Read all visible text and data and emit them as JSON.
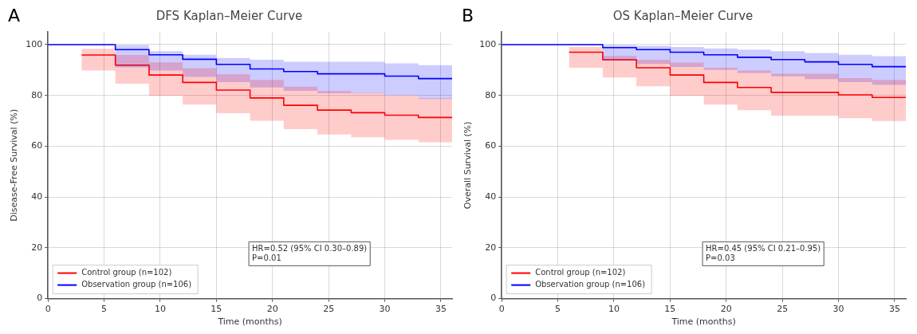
{
  "chart_data": [
    {
      "type": "step",
      "title": "DFS Kaplan–Meier Curve",
      "xlabel": "Time (months)",
      "ylabel": "Disease-Free Survival (%)",
      "xlim": [
        0,
        36
      ],
      "xticks": [
        0,
        5,
        10,
        15,
        20,
        25,
        30,
        35
      ],
      "ylim": [
        0,
        105
      ],
      "yticks": [
        0,
        20,
        40,
        60,
        80,
        100
      ],
      "grid": true,
      "legend": "bottom left",
      "annotations": [
        "A",
        "HR=0.52 (95% CI 0.30–0.89)",
        "P=0.01"
      ],
      "series": [
        {
          "name": "Control group (n=102)",
          "color": "#ff0000",
          "x": [
            0,
            3,
            6,
            9,
            12,
            15,
            18,
            21,
            24,
            27,
            30,
            33,
            36
          ],
          "values": [
            null,
            95.9,
            91.9,
            88.0,
            85.1,
            82.1,
            79.0,
            76.1,
            74.2,
            73.2,
            72.2,
            71.3,
            71.3
          ],
          "lower": [
            100,
            89.8,
            84.6,
            79.8,
            76.4,
            73.0,
            70.0,
            66.7,
            64.6,
            63.5,
            62.5,
            61.5,
            61.5
          ],
          "upper": [
            100,
            98.3,
            95.9,
            93.0,
            90.7,
            88.3,
            86.1,
            83.4,
            81.7,
            81.0,
            80.0,
            78.9,
            78.9
          ]
        },
        {
          "name": "Observation group (n=106)",
          "color": "#0000ff",
          "x": [
            0,
            6,
            9,
            12,
            15,
            18,
            21,
            24,
            30,
            33,
            36
          ],
          "values": [
            100,
            98.0,
            96.0,
            94.2,
            92.2,
            90.4,
            89.4,
            88.5,
            87.6,
            86.6,
            86.6
          ],
          "lower": [
            100,
            91.0,
            89.8,
            87.3,
            85.2,
            83.1,
            81.8,
            80.8,
            80.0,
            78.6,
            78.6
          ],
          "upper": [
            100,
            99.8,
            97.4,
            96.0,
            94.7,
            94.0,
            93.2,
            93.2,
            92.6,
            91.9,
            91.9
          ]
        }
      ]
    },
    {
      "type": "step",
      "title": "OS Kaplan–Meier Curve",
      "xlabel": "Time (months)",
      "ylabel": "Overall Survival (%)",
      "xlim": [
        0,
        36
      ],
      "xticks": [
        0,
        5,
        10,
        15,
        20,
        25,
        30,
        35
      ],
      "ylim": [
        0,
        105
      ],
      "yticks": [
        0,
        20,
        40,
        60,
        80,
        100
      ],
      "grid": true,
      "legend": "bottom left",
      "annotations": [
        "B",
        "HR=0.45 (95% CI 0.21–0.95)",
        "P=0.03"
      ],
      "series": [
        {
          "name": "Control group (n=102)",
          "color": "#ff0000",
          "x": [
            0,
            6,
            9,
            12,
            15,
            18,
            21,
            24,
            30,
            33,
            36
          ],
          "values": [
            null,
            97.0,
            94.0,
            90.9,
            88.0,
            85.1,
            83.1,
            81.2,
            80.2,
            79.2,
            79.2
          ],
          "lower": [
            100,
            90.9,
            87.0,
            83.6,
            79.8,
            76.4,
            74.2,
            72.0,
            71.0,
            69.9,
            69.9
          ],
          "upper": [
            100,
            99.0,
            95.5,
            94.0,
            92.9,
            90.9,
            89.8,
            88.5,
            86.8,
            86.1,
            86.1
          ]
        },
        {
          "name": "Observation group (n=106)",
          "color": "#0000ff",
          "x": [
            0,
            9,
            12,
            15,
            18,
            21,
            24,
            27,
            30,
            33,
            36
          ],
          "values": [
            100,
            98.8,
            98.0,
            97.0,
            96.0,
            95.0,
            94.1,
            93.2,
            92.2,
            91.3,
            91.3
          ],
          "lower": [
            100,
            93.7,
            92.4,
            91.2,
            90.0,
            88.8,
            87.5,
            86.4,
            85.2,
            84.1,
            84.1
          ],
          "upper": [
            100,
            99.8,
            99.5,
            99.0,
            98.5,
            98.0,
            97.4,
            96.7,
            96.0,
            95.4,
            95.4
          ]
        }
      ]
    }
  ]
}
